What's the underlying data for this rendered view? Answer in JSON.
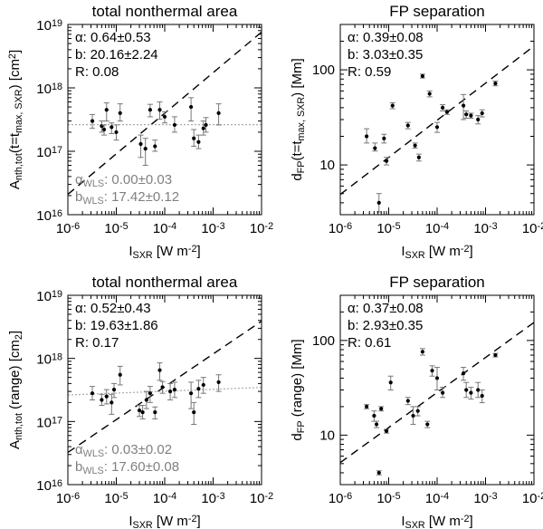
{
  "chart_data": [
    {
      "type": "scatter",
      "title": "total nonthermal area",
      "ylabel_parts": [
        "A",
        "nth,tot",
        "(t=t",
        "max, SXR",
        ") [cm",
        "2",
        "]"
      ],
      "xlabel_parts": [
        "I",
        "SXR",
        " [W m",
        "-2",
        "]"
      ],
      "xlim": [
        1e-06,
        0.01
      ],
      "ylim": [
        1e+16,
        1e+19
      ],
      "xticks": [
        "10-6",
        "10-5",
        "10-4",
        "10-3",
        "10-2"
      ],
      "yticks": [
        "1016",
        "1017",
        "1018",
        "1019"
      ],
      "stats": [
        "α: 0.64±0.53",
        "b: 20.16±2.24",
        "R: 0.08"
      ],
      "wls": [
        [
          "α",
          "WLS",
          ": 0.00±0.03"
        ],
        [
          "b",
          "WLS",
          ": 17.42±0.12"
        ]
      ],
      "fit_line": {
        "slope": 0.64,
        "intercept": 20.16
      },
      "wls_line": {
        "slope": 0.0,
        "intercept": 17.42
      },
      "points": [
        {
          "x": 3.2e-06,
          "y": 3e+17,
          "elo": 2.3e+17,
          "ehi": 3.8e+17
        },
        {
          "x": 5e-06,
          "y": 2.5e+17,
          "elo": 2e+17,
          "ehi": 3e+17
        },
        {
          "x": 5.6e-06,
          "y": 2.2e+17,
          "elo": 1.8e+17,
          "ehi": 2.6e+17
        },
        {
          "x": 6.3e-06,
          "y": 4.5e+17,
          "elo": 3e+17,
          "ehi": 5.8e+17
        },
        {
          "x": 8e-06,
          "y": 2.4e+17,
          "elo": 1.9e+17,
          "ehi": 2.8e+17
        },
        {
          "x": 1e-05,
          "y": 2e+17,
          "elo": 1.5e+17,
          "ehi": 2.6e+17
        },
        {
          "x": 1.2e-05,
          "y": 4e+17,
          "elo": 3e+17,
          "ehi": 5.6e+17
        },
        {
          "x": 3.2e-05,
          "y": 1.3e+17,
          "elo": 8e+16,
          "ehi": 1.8e+17
        },
        {
          "x": 4e-05,
          "y": 1.1e+17,
          "elo": 6e+16,
          "ehi": 1.6e+17
        },
        {
          "x": 5e-05,
          "y": 4.5e+17,
          "elo": 3.5e+17,
          "ehi": 5.5e+17
        },
        {
          "x": 6.3e-05,
          "y": 1.2e+17,
          "elo": 1e+17,
          "ehi": 1.5e+17
        },
        {
          "x": 7.9e-05,
          "y": 4.5e+17,
          "elo": 3.2e+17,
          "ehi": 6e+17
        },
        {
          "x": 0.0001,
          "y": 3.5e+17,
          "elo": 2.8e+17,
          "ehi": 4.2e+17
        },
        {
          "x": 0.00016,
          "y": 2.6e+17,
          "elo": 2e+17,
          "ehi": 3.5e+17
        },
        {
          "x": 0.00035,
          "y": 5e+17,
          "elo": 3e+17,
          "ehi": 7e+17
        },
        {
          "x": 0.0004,
          "y": 1.6e+17,
          "elo": 1.2e+17,
          "ehi": 2.2e+17
        },
        {
          "x": 0.0005,
          "y": 1.4e+17,
          "elo": 1.1e+17,
          "ehi": 1.8e+17
        },
        {
          "x": 0.00063,
          "y": 2.3e+17,
          "elo": 1.8e+17,
          "ehi": 3e+17
        },
        {
          "x": 0.00071,
          "y": 2.6e+17,
          "elo": 2e+17,
          "ehi": 3.4e+17
        },
        {
          "x": 0.0013,
          "y": 4e+17,
          "elo": 2.6e+17,
          "ehi": 5.6e+17
        }
      ]
    },
    {
      "type": "scatter",
      "title": "FP separation",
      "ylabel_parts": [
        "d",
        "FP",
        "(t=t",
        "max, SXR",
        ") [Mm]"
      ],
      "xlabel_parts": [
        "I",
        "SXR",
        " [W m",
        "-2",
        "]"
      ],
      "xlim": [
        1e-06,
        0.01
      ],
      "ylim": [
        3,
        300
      ],
      "xticks": [
        "10-6",
        "10-5",
        "10-4",
        "10-3",
        "10-2"
      ],
      "ytick_values": [
        10,
        100
      ],
      "yticks": [
        "10",
        "100"
      ],
      "stats": [
        "α: 0.39±0.08",
        "b: 3.03±0.35",
        "R: 0.59"
      ],
      "fit_line": {
        "slope": 0.39,
        "intercept": 3.03
      },
      "points": [
        {
          "x": 3.5e-06,
          "y": 20,
          "elo": 17,
          "ehi": 24
        },
        {
          "x": 5.2e-06,
          "y": 15,
          "elo": 14,
          "ehi": 17
        },
        {
          "x": 6.3e-06,
          "y": 4,
          "elo": 3.2,
          "ehi": 5
        },
        {
          "x": 8e-06,
          "y": 19,
          "elo": 17,
          "ehi": 21
        },
        {
          "x": 9e-06,
          "y": 11,
          "elo": 10,
          "ehi": 12
        },
        {
          "x": 1.2e-05,
          "y": 42,
          "elo": 39,
          "ehi": 45
        },
        {
          "x": 2.5e-05,
          "y": 26,
          "elo": 24,
          "ehi": 28
        },
        {
          "x": 3.5e-05,
          "y": 16,
          "elo": 15,
          "ehi": 17
        },
        {
          "x": 4.2e-05,
          "y": 12,
          "elo": 11,
          "ehi": 13
        },
        {
          "x": 5e-05,
          "y": 86,
          "elo": 82,
          "ehi": 90
        },
        {
          "x": 7e-05,
          "y": 56,
          "elo": 52,
          "ehi": 60
        },
        {
          "x": 0.0001,
          "y": 25,
          "elo": 22,
          "ehi": 28
        },
        {
          "x": 0.00013,
          "y": 40,
          "elo": 37,
          "ehi": 43
        },
        {
          "x": 0.00016,
          "y": 36,
          "elo": 34,
          "ehi": 38
        },
        {
          "x": 0.00035,
          "y": 42,
          "elo": 30,
          "ehi": 55
        },
        {
          "x": 0.0004,
          "y": 34,
          "elo": 31,
          "ehi": 37
        },
        {
          "x": 0.0005,
          "y": 33,
          "elo": 31,
          "ehi": 35
        },
        {
          "x": 0.0007,
          "y": 30,
          "elo": 27,
          "ehi": 33
        },
        {
          "x": 0.00085,
          "y": 35,
          "elo": 32,
          "ehi": 38
        },
        {
          "x": 0.0016,
          "y": 72,
          "elo": 68,
          "ehi": 76
        }
      ]
    },
    {
      "type": "scatter",
      "title": "total nonthermal area",
      "ylabel_parts": [
        "A",
        "nth,tot",
        " (range) [cm",
        "2",
        "]"
      ],
      "xlabel_parts": [
        "I",
        "SXR",
        " [W m",
        "-2",
        "]"
      ],
      "xlim": [
        1e-06,
        0.01
      ],
      "ylim": [
        1e+16,
        1e+19
      ],
      "xticks": [
        "10-6",
        "10-5",
        "10-4",
        "10-3",
        "10-2"
      ],
      "yticks": [
        "1016",
        "1017",
        "1018",
        "1019"
      ],
      "stats": [
        "α: 0.52±0.43",
        "b: 19.63±1.86",
        "R: 0.17"
      ],
      "wls": [
        [
          "α",
          "WLS",
          ": 0.03±0.02"
        ],
        [
          "b",
          "WLS",
          ": 17.60±0.08"
        ]
      ],
      "fit_line": {
        "slope": 0.52,
        "intercept": 19.63
      },
      "wls_line": {
        "slope": 0.03,
        "intercept": 17.6
      },
      "points": [
        {
          "x": 3.2e-06,
          "y": 2.8e+17,
          "elo": 2.2e+17,
          "ehi": 3.6e+17
        },
        {
          "x": 5e-06,
          "y": 2.2e+17,
          "elo": 1.8e+17,
          "ehi": 2.7e+17
        },
        {
          "x": 6.3e-06,
          "y": 2.5e+17,
          "elo": 1.9e+17,
          "ehi": 3.2e+17
        },
        {
          "x": 8e-06,
          "y": 2e+17,
          "elo": 1.3e+17,
          "ehi": 2.7e+17
        },
        {
          "x": 9e-06,
          "y": 3.2e+17,
          "elo": 2.4e+17,
          "ehi": 4e+17
        },
        {
          "x": 1.2e-05,
          "y": 5.5e+17,
          "elo": 3.8e+17,
          "ehi": 7.5e+17
        },
        {
          "x": 3e-05,
          "y": 1.5e+17,
          "elo": 1.2e+17,
          "ehi": 1.8e+17
        },
        {
          "x": 3.5e-05,
          "y": 1.4e+17,
          "elo": 1.1e+17,
          "ehi": 1.8e+17
        },
        {
          "x": 4.2e-05,
          "y": 2.2e+17,
          "elo": 1.6e+17,
          "ehi": 3e+17
        },
        {
          "x": 5e-05,
          "y": 2.8e+17,
          "elo": 2e+17,
          "ehi": 3.6e+17
        },
        {
          "x": 6.3e-05,
          "y": 1.4e+17,
          "elo": 1.1e+17,
          "ehi": 1.7e+17
        },
        {
          "x": 7.9e-05,
          "y": 6.5e+17,
          "elo": 4.5e+17,
          "ehi": 8.5e+17
        },
        {
          "x": 9e-05,
          "y": 3.5e+17,
          "elo": 2.8e+17,
          "ehi": 4.3e+17
        },
        {
          "x": 0.00013,
          "y": 3e+17,
          "elo": 2.2e+17,
          "ehi": 4e+17
        },
        {
          "x": 0.00016,
          "y": 3.2e+17,
          "elo": 2.4e+17,
          "ehi": 4.2e+17
        },
        {
          "x": 0.00035,
          "y": 2.8e+17,
          "elo": 1.6e+17,
          "ehi": 4.2e+17
        },
        {
          "x": 0.0004,
          "y": 1.4e+17,
          "elo": 9e+16,
          "ehi": 2e+17
        },
        {
          "x": 0.0005,
          "y": 3.3e+17,
          "elo": 2.4e+17,
          "ehi": 4.5e+17
        },
        {
          "x": 0.00063,
          "y": 3.8e+17,
          "elo": 2.8e+17,
          "ehi": 5e+17
        },
        {
          "x": 0.0013,
          "y": 4.2e+17,
          "elo": 3e+17,
          "ehi": 5.5e+17
        }
      ]
    },
    {
      "type": "scatter",
      "title": "FP separation",
      "ylabel_parts": [
        "d",
        "FP",
        " (range) [Mm]"
      ],
      "xlabel_parts": [
        "I",
        "SXR",
        " [W m",
        "-2",
        "]"
      ],
      "xlim": [
        1e-06,
        0.01
      ],
      "ylim": [
        3,
        300
      ],
      "xticks": [
        "10-6",
        "10-5",
        "10-4",
        "10-3",
        "10-2"
      ],
      "ytick_values": [
        10,
        100
      ],
      "yticks": [
        "10",
        "100"
      ],
      "stats": [
        "α: 0.37±0.08",
        "b: 2.93±0.35",
        "R: 0.61"
      ],
      "fit_line": {
        "slope": 0.37,
        "intercept": 2.93
      },
      "points": [
        {
          "x": 3.5e-06,
          "y": 20,
          "elo": 19,
          "ehi": 21
        },
        {
          "x": 5e-06,
          "y": 16,
          "elo": 14,
          "ehi": 18
        },
        {
          "x": 5.6e-06,
          "y": 13,
          "elo": 12,
          "ehi": 14
        },
        {
          "x": 6.3e-06,
          "y": 4,
          "elo": 3.8,
          "ehi": 4.2
        },
        {
          "x": 7e-06,
          "y": 19,
          "elo": 18,
          "ehi": 20
        },
        {
          "x": 9e-06,
          "y": 11,
          "elo": 10.5,
          "ehi": 11.5
        },
        {
          "x": 1.1e-05,
          "y": 36,
          "elo": 30,
          "ehi": 42
        },
        {
          "x": 2.5e-05,
          "y": 23,
          "elo": 21,
          "ehi": 25
        },
        {
          "x": 3.2e-05,
          "y": 16,
          "elo": 13,
          "ehi": 20
        },
        {
          "x": 4e-05,
          "y": 18,
          "elo": 16,
          "ehi": 20
        },
        {
          "x": 5e-05,
          "y": 76,
          "elo": 70,
          "ehi": 82
        },
        {
          "x": 6.3e-05,
          "y": 13,
          "elo": 12,
          "ehi": 14
        },
        {
          "x": 7.9e-05,
          "y": 48,
          "elo": 42,
          "ehi": 54
        },
        {
          "x": 0.0001,
          "y": 40,
          "elo": 30,
          "ehi": 52
        },
        {
          "x": 0.00013,
          "y": 28,
          "elo": 25,
          "ehi": 32
        },
        {
          "x": 0.00035,
          "y": 45,
          "elo": 38,
          "ehi": 52
        },
        {
          "x": 0.0004,
          "y": 30,
          "elo": 25,
          "ehi": 36
        },
        {
          "x": 0.0005,
          "y": 28,
          "elo": 24,
          "ehi": 32
        },
        {
          "x": 0.0007,
          "y": 30,
          "elo": 25,
          "ehi": 36
        },
        {
          "x": 0.00085,
          "y": 26,
          "elo": 22,
          "ehi": 30
        },
        {
          "x": 0.0016,
          "y": 70,
          "elo": 67,
          "ehi": 73
        }
      ]
    }
  ],
  "colors": {
    "axis": "#000000",
    "wls_text": "#808080",
    "wls_line": "#aaaaaa"
  }
}
